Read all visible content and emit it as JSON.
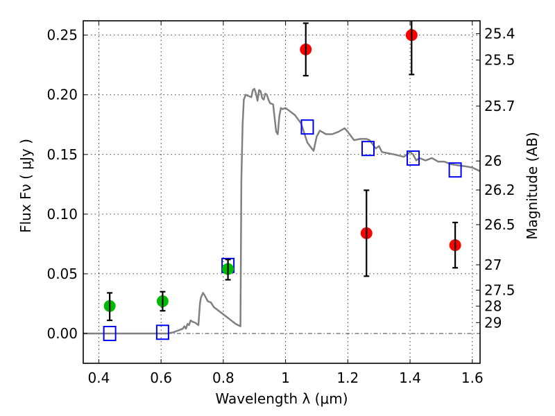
{
  "chart_data": {
    "type": "scatter",
    "title": "",
    "xlabel": "Wavelength  λ (μm)",
    "ylabel": "Flux  Fν  ( μJy )",
    "ylabel_right": "Magnitude (AB)",
    "xlim": [
      0.35,
      1.625
    ],
    "ylim": [
      -0.025,
      0.262
    ],
    "grid": true,
    "legend": "none",
    "x_ticks": [
      0.4,
      0.6,
      0.8,
      1.0,
      1.2,
      1.4,
      1.6
    ],
    "x_tick_labels": [
      "0.4",
      "0.6",
      "0.8",
      "1",
      "1.2",
      "1.4",
      "1.6"
    ],
    "y_ticks": [
      0.0,
      0.05,
      0.1,
      0.15,
      0.2,
      0.25
    ],
    "y_tick_labels": [
      "0.00",
      "0.05",
      "0.10",
      "0.15",
      "0.20",
      "0.25"
    ],
    "right_axis": {
      "zero_point_mag": 23.9,
      "ticks": [
        25.4,
        25.5,
        25.7,
        26,
        26.2,
        26.5,
        27,
        27.5,
        28,
        29
      ],
      "tick_labels": [
        "25.4",
        "25.5",
        "25.7",
        "26",
        "26.2",
        "26.5",
        "27",
        "27.5",
        "28",
        "29"
      ]
    },
    "series": [
      {
        "name": "model-spectrum",
        "kind": "line",
        "color": "#808080",
        "x": [
          0.35,
          0.62,
          0.64,
          0.66,
          0.67,
          0.675,
          0.68,
          0.685,
          0.69,
          0.695,
          0.7,
          0.71,
          0.72,
          0.725,
          0.728,
          0.735,
          0.74,
          0.75,
          0.76,
          0.77,
          0.78,
          0.8,
          0.81,
          0.82,
          0.83,
          0.84,
          0.855,
          0.858,
          0.862,
          0.866,
          0.872,
          0.88,
          0.89,
          0.895,
          0.9,
          0.905,
          0.91,
          0.915,
          0.92,
          0.925,
          0.93,
          0.935,
          0.94,
          0.945,
          0.95,
          0.96,
          0.97,
          0.975,
          0.98,
          0.985,
          0.99,
          1.0,
          1.02,
          1.03,
          1.05,
          1.07,
          1.09,
          1.1,
          1.11,
          1.13,
          1.15,
          1.17,
          1.19,
          1.2,
          1.22,
          1.24,
          1.26,
          1.27,
          1.29,
          1.3,
          1.31,
          1.33,
          1.35,
          1.38,
          1.4,
          1.41,
          1.42,
          1.43,
          1.45,
          1.47,
          1.49,
          1.51,
          1.53,
          1.55,
          1.58,
          1.6,
          1.625
        ],
        "y": [
          0.0,
          0.0,
          0.001,
          0.003,
          0.004,
          0.006,
          0.004,
          0.008,
          0.007,
          0.011,
          0.01,
          0.009,
          0.007,
          0.025,
          0.03,
          0.034,
          0.032,
          0.027,
          0.026,
          0.022,
          0.02,
          0.016,
          0.014,
          0.012,
          0.01,
          0.008,
          0.006,
          0.128,
          0.175,
          0.196,
          0.2,
          0.199,
          0.198,
          0.204,
          0.205,
          0.201,
          0.195,
          0.204,
          0.203,
          0.197,
          0.196,
          0.201,
          0.2,
          0.196,
          0.193,
          0.192,
          0.169,
          0.167,
          0.182,
          0.189,
          0.188,
          0.189,
          0.185,
          0.183,
          0.176,
          0.16,
          0.153,
          0.165,
          0.17,
          0.167,
          0.167,
          0.169,
          0.172,
          0.169,
          0.162,
          0.163,
          0.163,
          0.162,
          0.155,
          0.157,
          0.152,
          0.151,
          0.15,
          0.148,
          0.152,
          0.15,
          0.145,
          0.147,
          0.145,
          0.147,
          0.144,
          0.144,
          0.142,
          0.141,
          0.14,
          0.139,
          0.136
        ]
      },
      {
        "name": "model-photometry",
        "kind": "marker",
        "marker": "open-square",
        "color": "#0000ff",
        "x": [
          0.435,
          0.605,
          0.815,
          1.07,
          1.265,
          1.41,
          1.545
        ],
        "y": [
          0.0,
          0.001,
          0.057,
          0.173,
          0.155,
          0.147,
          0.137
        ]
      },
      {
        "name": "observed-optical",
        "kind": "marker",
        "marker": "filled-circle",
        "color": "#00bb00",
        "x": [
          0.435,
          0.605,
          0.815
        ],
        "y": [
          0.023,
          0.027,
          0.054
        ],
        "yerr_low": [
          0.012,
          0.008,
          0.009
        ],
        "yerr_high": [
          0.011,
          0.008,
          0.008
        ]
      },
      {
        "name": "observed-nir",
        "kind": "marker",
        "marker": "filled-circle",
        "color": "#ff0000",
        "x": [
          1.065,
          1.26,
          1.405,
          1.545
        ],
        "y": [
          0.238,
          0.084,
          0.25,
          0.074
        ],
        "yerr_low": [
          0.022,
          0.036,
          0.033,
          0.019
        ],
        "yerr_high": [
          0.022,
          0.036,
          0.033,
          0.019
        ]
      }
    ]
  }
}
